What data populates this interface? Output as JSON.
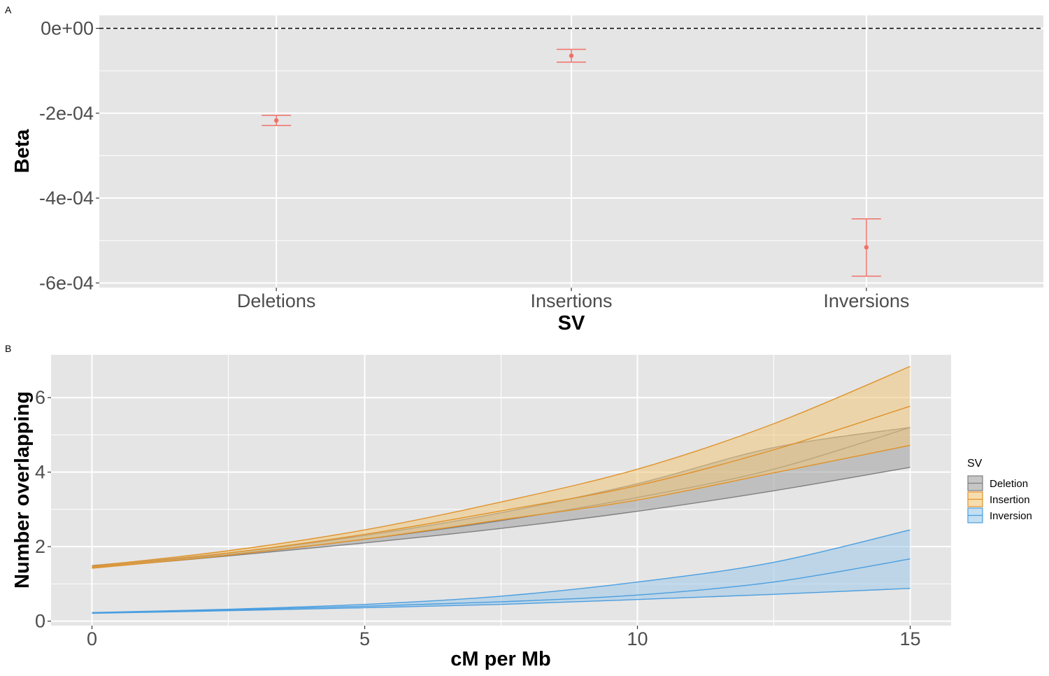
{
  "panels": {
    "a_label": "A",
    "b_label": "B"
  },
  "colors": {
    "panel_bg": "#e5e5e5",
    "grid": "#ffffff",
    "errorbar": "#f07068",
    "deletion_line": "#7f7f7f",
    "deletion_fill": "#a0a0a0",
    "insertion_line": "#e0922a",
    "insertion_fill": "#f0c67a",
    "inversion_line": "#4a9ee0",
    "inversion_fill": "#9cc8ea"
  },
  "chart_data": [
    {
      "type": "errorbar",
      "panel": "A",
      "xlabel": "SV",
      "ylabel": "Beta",
      "categories": [
        "Deletions",
        "Insertions",
        "Inversions"
      ],
      "estimate": [
        -0.000217,
        -6.45e-05,
        -0.000516
      ],
      "lower": [
        -0.000229,
        -7.95e-05,
        -0.000584
      ],
      "upper": [
        -0.000205,
        -4.95e-05,
        -0.000449
      ],
      "ylim": [
        -0.000611,
        3.05e-05
      ],
      "y_ticks": [
        0,
        -0.0002,
        -0.0004,
        -0.0006
      ],
      "y_tick_labels": [
        "0e+00",
        "-2e-04",
        "-4e-04",
        "-6e-04"
      ],
      "reference_line": 0,
      "grid": true
    },
    {
      "type": "area",
      "panel": "B",
      "xlabel": "cM per Mb",
      "ylabel": "Number overlapping",
      "xlim": [
        -0.75,
        15.75
      ],
      "ylim": [
        -0.12,
        7.15
      ],
      "x_ticks": [
        0,
        5,
        10,
        15
      ],
      "y_ticks": [
        0,
        2,
        4,
        6
      ],
      "x": [
        0,
        2.5,
        5,
        7.5,
        10,
        12.5,
        15
      ],
      "legend_title": "SV",
      "legend_position": "right",
      "grid": true,
      "series": [
        {
          "name": "Deletion",
          "fit": [
            1.46,
            1.79,
            2.2,
            2.7,
            3.32,
            4.08,
            5.2
          ],
          "lower": [
            1.43,
            1.75,
            2.1,
            2.49,
            2.95,
            3.5,
            4.13
          ],
          "upper": [
            1.49,
            1.83,
            2.3,
            2.91,
            3.69,
            4.66,
            5.2
          ]
        },
        {
          "name": "Insertion",
          "fit": [
            1.45,
            1.83,
            2.33,
            2.96,
            3.64,
            4.6,
            5.77
          ],
          "lower": [
            1.42,
            1.77,
            2.2,
            2.72,
            3.25,
            3.98,
            4.72
          ],
          "upper": [
            1.48,
            1.89,
            2.45,
            3.2,
            4.08,
            5.3,
            6.84
          ]
        },
        {
          "name": "Inversion",
          "fit": [
            0.22,
            0.3,
            0.4,
            0.52,
            0.7,
            1.05,
            1.67
          ],
          "lower": [
            0.21,
            0.28,
            0.36,
            0.45,
            0.58,
            0.72,
            0.88
          ],
          "upper": [
            0.23,
            0.32,
            0.45,
            0.67,
            1.05,
            1.58,
            2.45
          ]
        }
      ]
    }
  ]
}
